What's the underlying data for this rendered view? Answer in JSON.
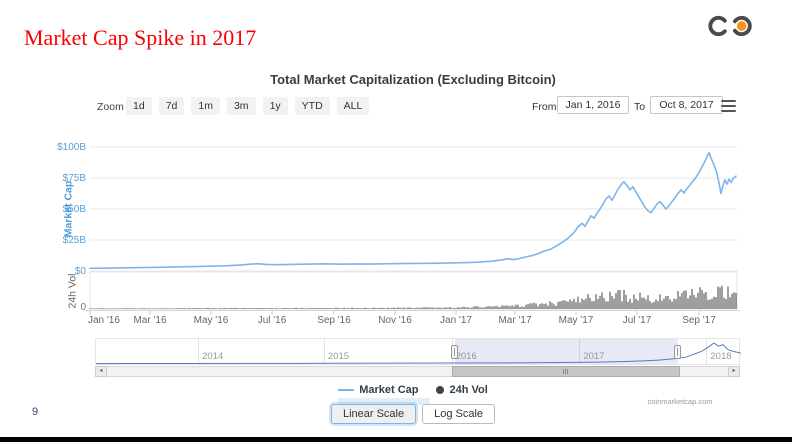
{
  "slide": {
    "title": "Market Cap Spike in 2017",
    "title_color": "#fb0000",
    "page_number": "9"
  },
  "logo": {
    "name": "infinity-logo",
    "ring_color": "#4d4a45",
    "dot_color": "#f7941d"
  },
  "chart": {
    "title": "Total Market Capitalization (Excluding Bitcoin)",
    "toolbar": {
      "zoom_label": "Zoom",
      "zoom_buttons": [
        "1d",
        "7d",
        "1m",
        "3m",
        "1y",
        "YTD",
        "ALL"
      ],
      "from_label": "From",
      "from_value": "Jan 1, 2016",
      "to_label": "To",
      "to_value": "Oct 8, 2017"
    },
    "y_axis": {
      "title": "Market Cap",
      "color": "#55a0d9",
      "labels": [
        {
          "text": "$100B",
          "value": 100
        },
        {
          "text": "$75B",
          "value": 75
        },
        {
          "text": "$50B",
          "value": 50
        },
        {
          "text": "$25B",
          "value": 25
        },
        {
          "text": "$0",
          "value": 0
        }
      ]
    },
    "vol_axis": {
      "title": "24h Vol",
      "zero_label": "0"
    },
    "x_axis": {
      "ticks": [
        {
          "label": "Jan '16",
          "day": 0
        },
        {
          "label": "Mar '16",
          "day": 60
        },
        {
          "label": "May '16",
          "day": 121
        },
        {
          "label": "Jul '16",
          "day": 182
        },
        {
          "label": "Sep '16",
          "day": 244
        },
        {
          "label": "Nov '16",
          "day": 305
        },
        {
          "label": "Jan '17",
          "day": 366
        },
        {
          "label": "Mar '17",
          "day": 425
        },
        {
          "label": "May '17",
          "day": 486
        },
        {
          "label": "Jul '17",
          "day": 547
        },
        {
          "label": "Sep '17",
          "day": 609
        }
      ]
    },
    "legend": [
      {
        "label": "Market Cap",
        "marker": "line",
        "color": "#7cb5ec",
        "highlighted": true
      },
      {
        "label": "24h Vol",
        "marker": "circle",
        "color": "#434348",
        "highlighted": false
      }
    ],
    "scale_buttons": [
      {
        "label": "Linear Scale",
        "active": true
      },
      {
        "label": "Log Scale",
        "active": false
      }
    ],
    "credit": "coinmarketcap.com"
  },
  "chart_data": {
    "type": "line+column",
    "title": "Total Market Capitalization (Excluding Bitcoin)",
    "x_unit": "days since Jan 1, 2016",
    "x_range": [
      "Jan 1, 2016",
      "Oct 8, 2017"
    ],
    "ylim_billions": [
      0,
      100
    ],
    "grid": true,
    "series": [
      {
        "name": "Market Cap",
        "type": "line",
        "color": "#7cb5ec",
        "unit": "USD billions",
        "points": [
          [
            0,
            2.2
          ],
          [
            15,
            2.3
          ],
          [
            30,
            2.5
          ],
          [
            45,
            2.7
          ],
          [
            60,
            2.9
          ],
          [
            75,
            3.1
          ],
          [
            90,
            3.4
          ],
          [
            105,
            3.6
          ],
          [
            120,
            3.9
          ],
          [
            135,
            4.2
          ],
          [
            150,
            4.8
          ],
          [
            160,
            5.5
          ],
          [
            168,
            5.9
          ],
          [
            176,
            5.3
          ],
          [
            190,
            5.1
          ],
          [
            205,
            5.4
          ],
          [
            220,
            5.6
          ],
          [
            235,
            5.8
          ],
          [
            250,
            5.5
          ],
          [
            265,
            5.7
          ],
          [
            280,
            5.6
          ],
          [
            295,
            5.8
          ],
          [
            310,
            6.0
          ],
          [
            325,
            6.1
          ],
          [
            340,
            6.2
          ],
          [
            355,
            6.4
          ],
          [
            366,
            6.6
          ],
          [
            378,
            6.8
          ],
          [
            390,
            7.2
          ],
          [
            400,
            7.8
          ],
          [
            410,
            8.7
          ],
          [
            418,
            9.8
          ],
          [
            424,
            9.2
          ],
          [
            430,
            10.2
          ],
          [
            436,
            11.4
          ],
          [
            442,
            12.4
          ],
          [
            448,
            13.9
          ],
          [
            454,
            16.0
          ],
          [
            460,
            17.4
          ],
          [
            466,
            20.0
          ],
          [
            472,
            23.0
          ],
          [
            478,
            26.5
          ],
          [
            484,
            31.0
          ],
          [
            488,
            35.5
          ],
          [
            492,
            38.5
          ],
          [
            495,
            36.0
          ],
          [
            498,
            40.5
          ],
          [
            501,
            44.5
          ],
          [
            504,
            42.5
          ],
          [
            507,
            46.5
          ],
          [
            510,
            50.0
          ],
          [
            513,
            54.0
          ],
          [
            516,
            58.0
          ],
          [
            519,
            60.5
          ],
          [
            522,
            57.0
          ],
          [
            525,
            61.5
          ],
          [
            528,
            66.0
          ],
          [
            531,
            69.5
          ],
          [
            534,
            72.0
          ],
          [
            537,
            69.0
          ],
          [
            540,
            65.5
          ],
          [
            543,
            68.0
          ],
          [
            546,
            63.5
          ],
          [
            549,
            59.5
          ],
          [
            552,
            55.5
          ],
          [
            555,
            51.5
          ],
          [
            558,
            48.5
          ],
          [
            561,
            47.0
          ],
          [
            564,
            50.5
          ],
          [
            567,
            54.0
          ],
          [
            570,
            56.0
          ],
          [
            573,
            53.0
          ],
          [
            576,
            50.0
          ],
          [
            579,
            52.5
          ],
          [
            582,
            56.0
          ],
          [
            585,
            59.0
          ],
          [
            588,
            62.5
          ],
          [
            591,
            65.5
          ],
          [
            594,
            63.0
          ],
          [
            597,
            66.5
          ],
          [
            600,
            69.5
          ],
          [
            603,
            72.5
          ],
          [
            606,
            75.5
          ],
          [
            609,
            79.5
          ],
          [
            612,
            84.0
          ],
          [
            615,
            88.5
          ],
          [
            617,
            92.0
          ],
          [
            619,
            95.5
          ],
          [
            621,
            91.0
          ],
          [
            623,
            87.5
          ],
          [
            625,
            83.5
          ],
          [
            627,
            78.5
          ],
          [
            629,
            71.0
          ],
          [
            631,
            62.5
          ],
          [
            633,
            69.0
          ],
          [
            635,
            73.5
          ],
          [
            637,
            70.0
          ],
          [
            639,
            74.0
          ],
          [
            641,
            71.5
          ],
          [
            643,
            74.5
          ],
          [
            646,
            76.5
          ]
        ]
      },
      {
        "name": "24h Vol",
        "type": "column",
        "color": "#3f3f44",
        "unit": "USD billions",
        "envelope": [
          [
            0,
            0.3
          ],
          [
            120,
            0.4
          ],
          [
            240,
            0.5
          ],
          [
            330,
            0.6
          ],
          [
            366,
            0.8
          ],
          [
            400,
            1.2
          ],
          [
            430,
            1.8
          ],
          [
            450,
            2.5
          ],
          [
            470,
            3.2
          ],
          [
            486,
            4.5
          ],
          [
            500,
            5.5
          ],
          [
            515,
            6.5
          ],
          [
            530,
            7.2
          ],
          [
            545,
            6.2
          ],
          [
            560,
            5.2
          ],
          [
            575,
            5.6
          ],
          [
            590,
            6.6
          ],
          [
            605,
            7.8
          ],
          [
            615,
            8.6
          ],
          [
            625,
            9.6
          ],
          [
            633,
            8.2
          ],
          [
            640,
            9.8
          ],
          [
            646,
            6.8
          ]
        ]
      }
    ]
  },
  "navigator": {
    "line_color": "#5b78c7",
    "selection_range": [
      "Jan 1, 2016",
      "Oct 8, 2017"
    ],
    "year_labels": [
      {
        "label": "2014",
        "f": 0.163
      },
      {
        "label": "2015",
        "f": 0.358
      },
      {
        "label": "2016",
        "f": 0.556
      },
      {
        "label": "2017",
        "f": 0.754
      },
      {
        "label": "2018",
        "f": 0.951
      }
    ],
    "selection": {
      "from_f": 0.556,
      "to_f": 0.902
    },
    "series_f": [
      [
        0,
        0.02
      ],
      [
        0.15,
        0.025
      ],
      [
        0.3,
        0.03
      ],
      [
        0.45,
        0.04
      ],
      [
        0.556,
        0.045
      ],
      [
        0.65,
        0.055
      ],
      [
        0.72,
        0.07
      ],
      [
        0.78,
        0.09
      ],
      [
        0.82,
        0.12
      ],
      [
        0.85,
        0.15
      ],
      [
        0.875,
        0.19
      ],
      [
        0.9,
        0.26
      ],
      [
        0.915,
        0.33
      ],
      [
        0.93,
        0.5
      ],
      [
        0.94,
        0.62
      ],
      [
        0.95,
        0.82
      ],
      [
        0.958,
        1.0
      ],
      [
        0.965,
        0.85
      ],
      [
        0.972,
        0.92
      ],
      [
        0.98,
        0.68
      ],
      [
        0.988,
        0.6
      ],
      [
        1.0,
        0.52
      ]
    ],
    "scrollbar": {
      "thumb_from": 0.554,
      "thumb_to": 0.919
    }
  }
}
